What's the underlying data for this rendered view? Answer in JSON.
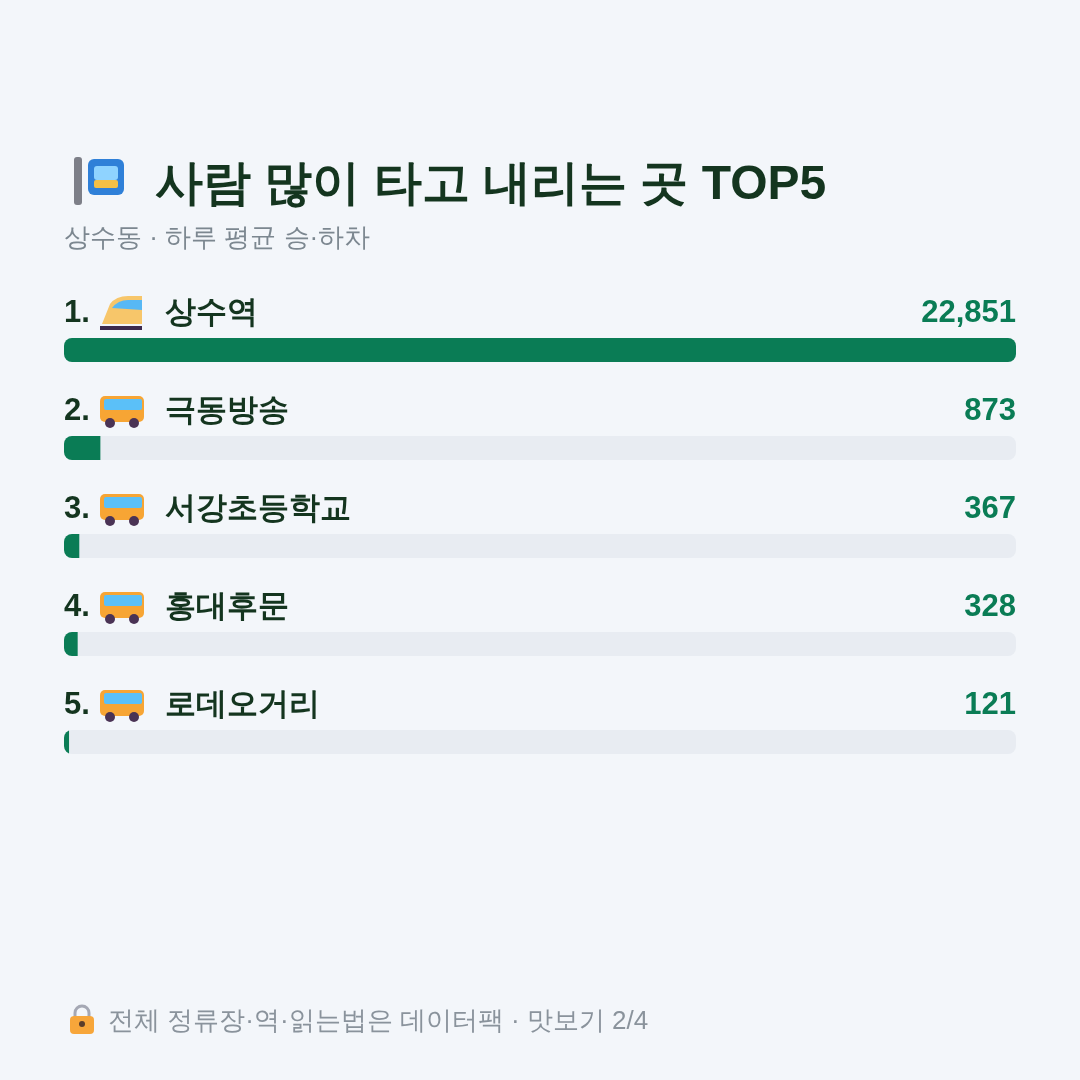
{
  "chart_data": {
    "type": "bar",
    "orientation": "horizontal",
    "title": "사람 많이 타고 내리는 곳 TOP5",
    "subtitle": "상수동 · 하루 평균 승·하차",
    "categories": [
      "1. 상수역",
      "2. 극동방송",
      "3. 서강초등학교",
      "4. 홍대후문",
      "5. 로데오거리"
    ],
    "values": [
      22851,
      873,
      367,
      328,
      121
    ],
    "value_labels": [
      "22,851",
      "873",
      "367",
      "328",
      "121"
    ],
    "color": "#0a7c55",
    "annotations": [
      "전체 정류장·역·읽는법은 데이터팩 · 맛보기 2/4"
    ]
  }
}
